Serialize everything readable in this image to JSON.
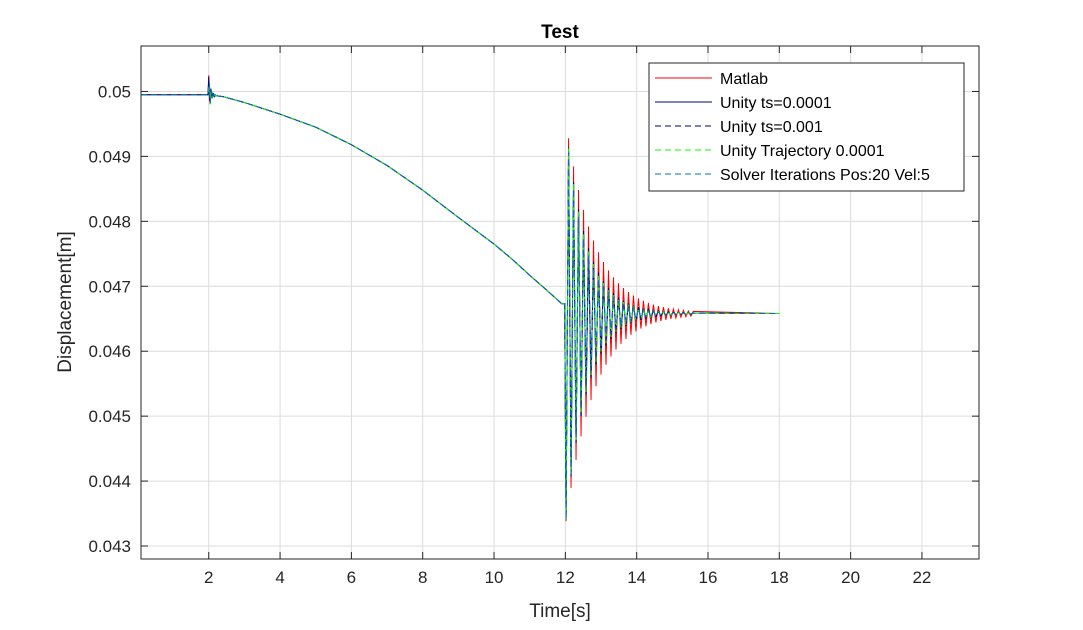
{
  "chart_data": {
    "type": "line",
    "title": "Test",
    "xlabel": "Time[s]",
    "ylabel": "Displacement[m]",
    "xlim": [
      0.1,
      23.6
    ],
    "ylim": [
      0.0428,
      0.0507
    ],
    "xticks": [
      2,
      4,
      6,
      8,
      10,
      12,
      14,
      16,
      18,
      20,
      22
    ],
    "yticks": [
      0.043,
      0.044,
      0.045,
      0.046,
      0.047,
      0.048,
      0.049,
      0.05
    ],
    "xtick_labels": [
      "2",
      "4",
      "6",
      "8",
      "10",
      "12",
      "14",
      "16",
      "18",
      "20",
      "22"
    ],
    "ytick_labels": [
      "0.043",
      "0.044",
      "0.045",
      "0.046",
      "0.047",
      "0.048",
      "0.049",
      "0.05"
    ],
    "grid": true,
    "legend_position": "top-right",
    "base_curve": {
      "x": [
        0.1,
        2.0,
        2.4,
        3.0,
        4.0,
        5.0,
        6.0,
        7.0,
        8.0,
        9.0,
        10.0,
        10.5,
        11.0,
        11.5,
        11.9
      ],
      "y": [
        0.04995,
        0.04995,
        0.04992,
        0.04983,
        0.04965,
        0.04945,
        0.04918,
        0.04886,
        0.04848,
        0.04806,
        0.04765,
        0.04742,
        0.04717,
        0.04693,
        0.04673
      ]
    },
    "impulse_at": 2.0,
    "impulse_amplitude": 0.0003,
    "settled_value": 0.04658,
    "settled_until": 18.0,
    "oscillation_start": 12.0,
    "oscillation_period": 0.14,
    "series": [
      {
        "name": "Matlab",
        "color": "#ff0000",
        "dash": "solid",
        "peak": 0.0496,
        "trough": 0.0433,
        "decay": 0.8
      },
      {
        "name": "Unity ts=0.0001",
        "color": "#000080",
        "dash": "solid",
        "peak": 0.04955,
        "trough": 0.0433,
        "decay": 0.6
      },
      {
        "name": "Unity ts=0.001",
        "color": "#000080",
        "dash": "dashed",
        "peak": 0.04955,
        "trough": 0.0433,
        "decay": 0.6
      },
      {
        "name": "Unity Trajectory 0.0001",
        "color": "#00ff00",
        "dash": "dashed",
        "peak": 0.04955,
        "trough": 0.0433,
        "decay": 0.58
      },
      {
        "name": "Solver Iterations Pos:20 Vel:5",
        "color": "#0072bd",
        "dash": "dashed",
        "peak": 0.0495,
        "trough": 0.0433,
        "decay": 0.55
      }
    ]
  }
}
